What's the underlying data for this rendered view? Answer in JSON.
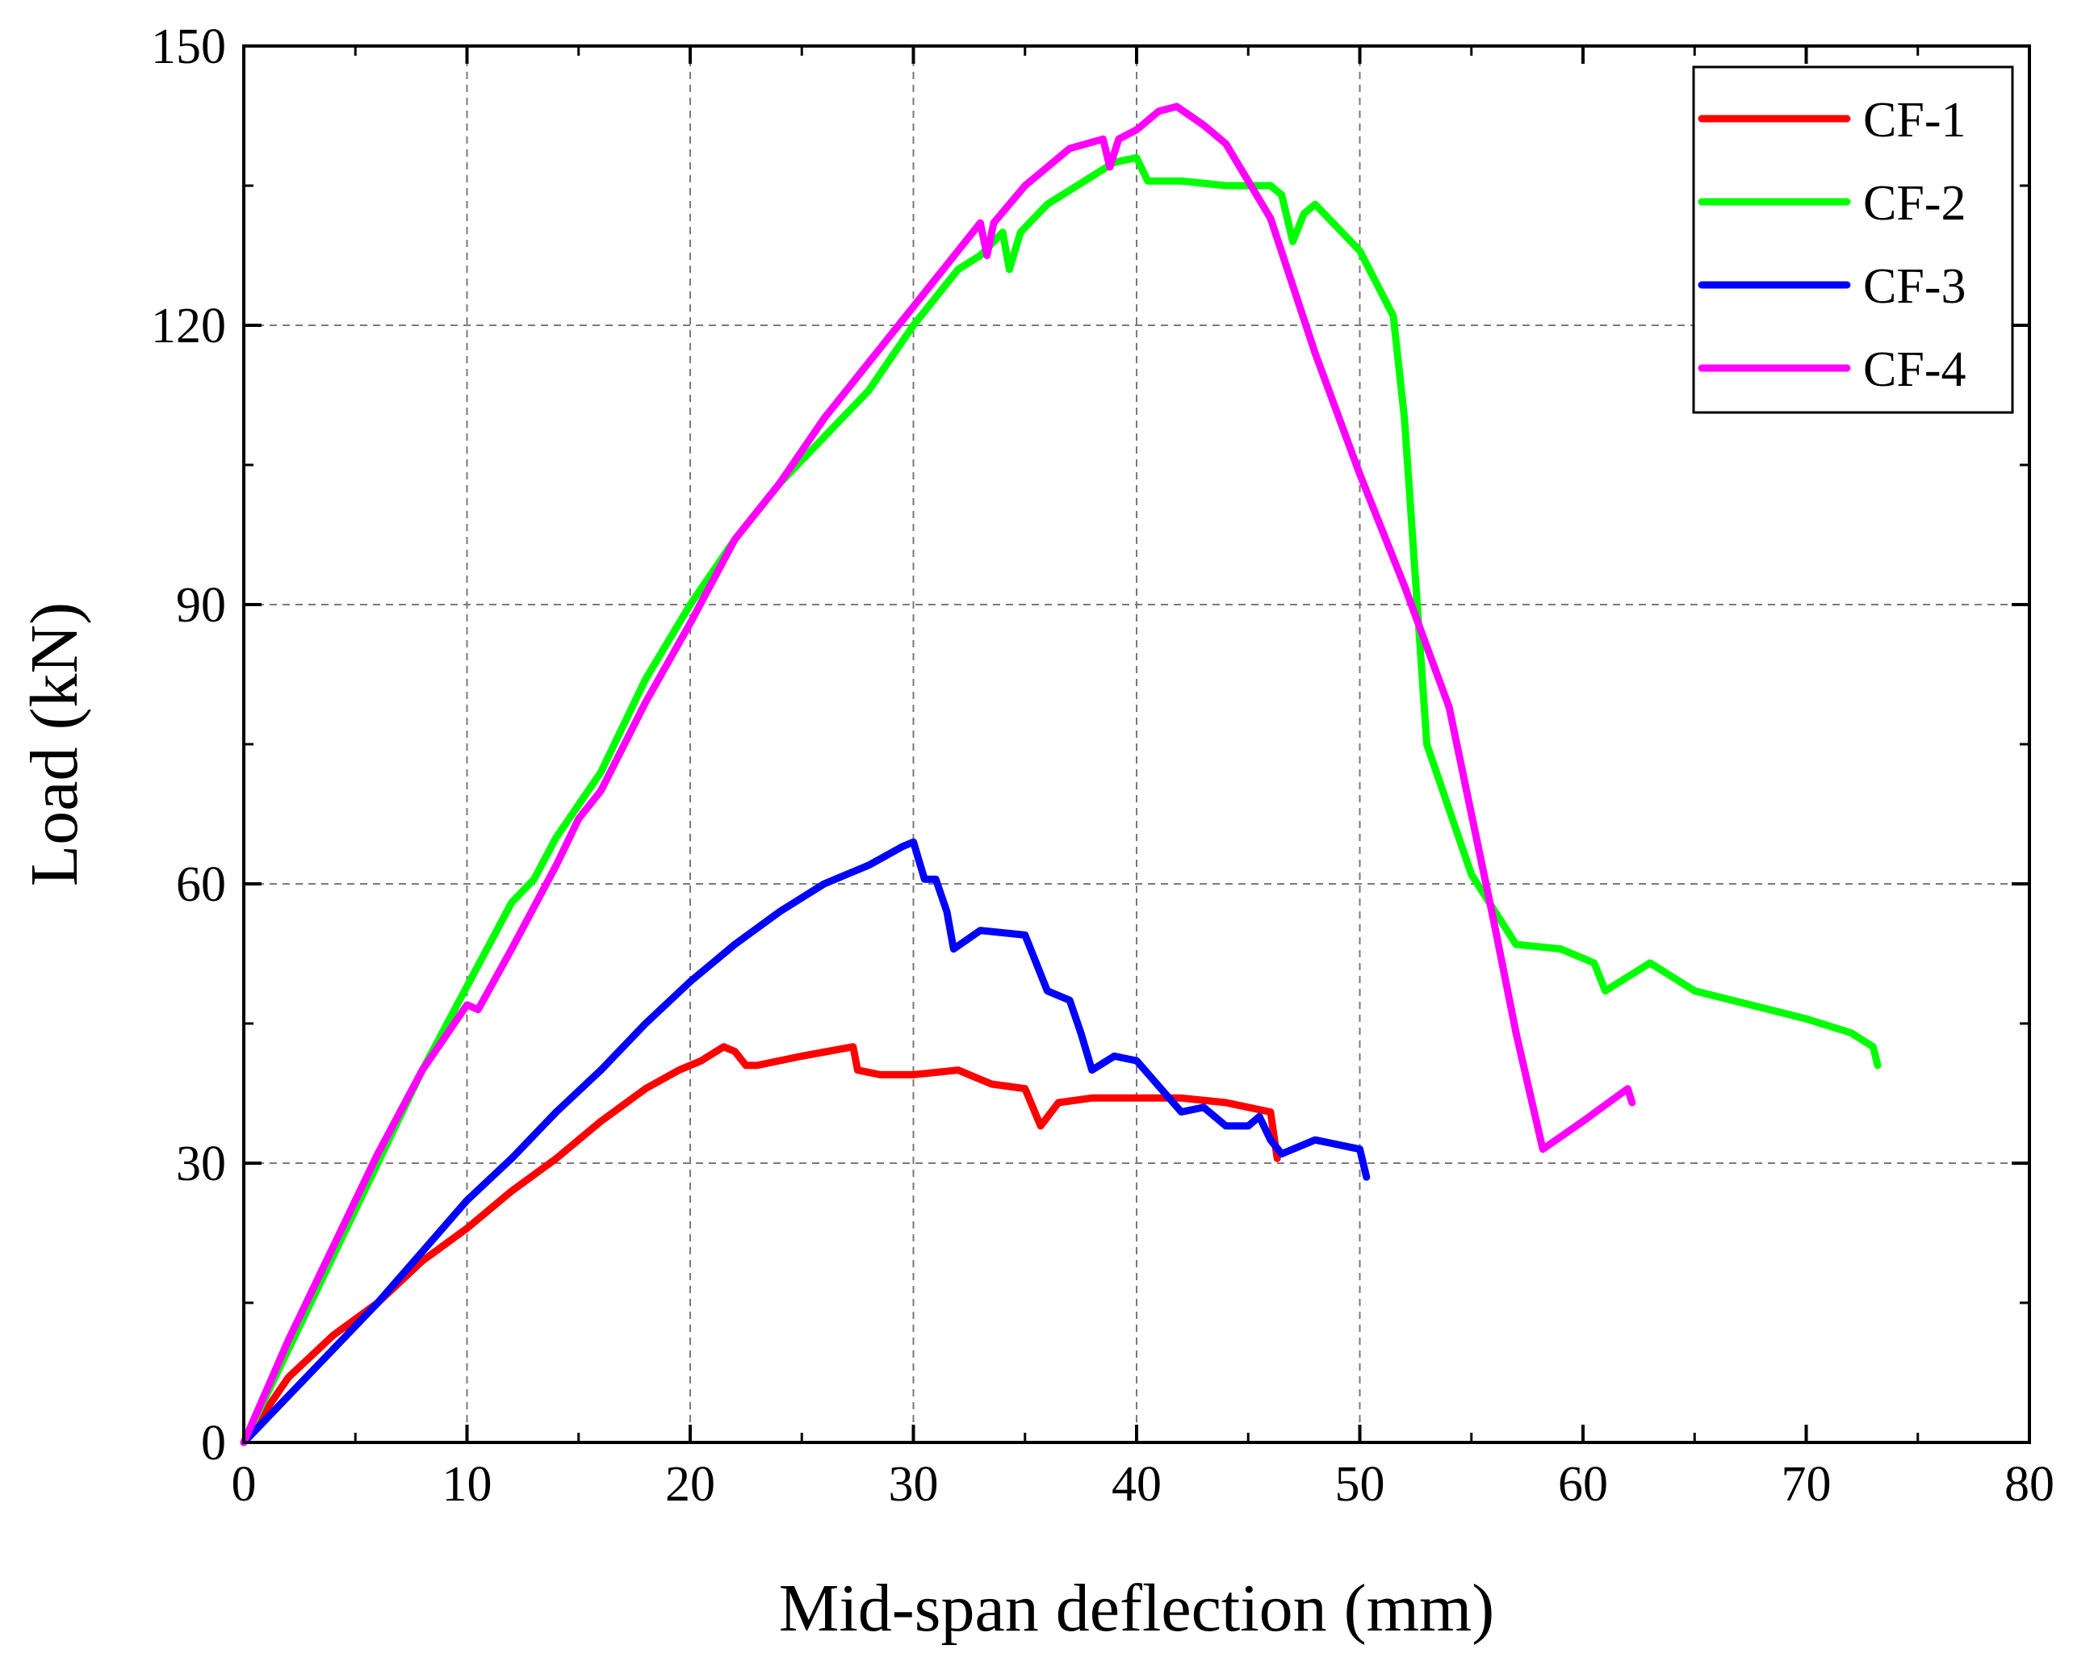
{
  "chart_data": {
    "type": "line",
    "title": "",
    "xlabel": "Mid-span deflection (mm)",
    "ylabel": "Load (kN)",
    "xlim": [
      0,
      80
    ],
    "ylim": [
      0,
      150
    ],
    "xticks": [
      0,
      10,
      20,
      30,
      40,
      50,
      60,
      70,
      80
    ],
    "yticks": [
      0,
      30,
      60,
      90,
      120,
      150
    ],
    "grid_x": [
      10,
      20,
      30,
      40,
      50
    ],
    "grid_y": [
      30,
      60,
      90,
      120
    ],
    "legend_position": "top-right",
    "series": [
      {
        "name": "CF-1",
        "color": "#ff0000",
        "points": [
          [
            0,
            0
          ],
          [
            2,
            7
          ],
          [
            4,
            11.5
          ],
          [
            6,
            15
          ],
          [
            8,
            19.5
          ],
          [
            10,
            23
          ],
          [
            12,
            27
          ],
          [
            14,
            30.5
          ],
          [
            16,
            34.5
          ],
          [
            18,
            38
          ],
          [
            19.5,
            40
          ],
          [
            20.5,
            41
          ],
          [
            21.5,
            42.5
          ],
          [
            22,
            42
          ],
          [
            22.5,
            40.5
          ],
          [
            23,
            40.5
          ],
          [
            25,
            41.5
          ],
          [
            27.3,
            42.5
          ],
          [
            27.5,
            40
          ],
          [
            28.5,
            39.5
          ],
          [
            30,
            39.5
          ],
          [
            32,
            40
          ],
          [
            33.5,
            38.5
          ],
          [
            35,
            38
          ],
          [
            35.7,
            34
          ],
          [
            36.5,
            36.5
          ],
          [
            38,
            37
          ],
          [
            40,
            37
          ],
          [
            42,
            37
          ],
          [
            44,
            36.5
          ],
          [
            46,
            35.5
          ],
          [
            46.3,
            30.5
          ]
        ]
      },
      {
        "name": "CF-2",
        "color": "#00ff00",
        "points": [
          [
            0,
            0
          ],
          [
            2,
            10
          ],
          [
            4,
            20
          ],
          [
            6,
            30
          ],
          [
            8,
            40
          ],
          [
            10,
            49
          ],
          [
            11,
            53.5
          ],
          [
            12,
            58
          ],
          [
            13,
            60.5
          ],
          [
            14,
            65
          ],
          [
            16,
            72
          ],
          [
            18,
            82
          ],
          [
            20,
            90
          ],
          [
            22,
            97
          ],
          [
            24,
            103
          ],
          [
            26,
            108
          ],
          [
            28,
            113
          ],
          [
            30,
            120
          ],
          [
            32,
            126
          ],
          [
            33,
            127.5
          ],
          [
            34,
            130
          ],
          [
            34.3,
            126
          ],
          [
            34.8,
            130
          ],
          [
            36,
            133
          ],
          [
            38,
            136
          ],
          [
            39,
            137.5
          ],
          [
            40,
            138
          ],
          [
            40.5,
            135.5
          ],
          [
            42,
            135.5
          ],
          [
            44,
            135
          ],
          [
            46,
            135
          ],
          [
            46.5,
            134
          ],
          [
            47,
            129
          ],
          [
            47.5,
            132
          ],
          [
            48,
            133
          ],
          [
            50,
            128
          ],
          [
            51.5,
            121
          ],
          [
            52,
            110
          ],
          [
            53,
            75
          ],
          [
            55,
            61
          ],
          [
            57,
            53.5
          ],
          [
            59,
            53
          ],
          [
            60.5,
            51.5
          ],
          [
            61,
            48.5
          ],
          [
            63,
            51.5
          ],
          [
            65,
            48.5
          ],
          [
            70,
            45.5
          ],
          [
            72,
            44
          ],
          [
            73,
            42.5
          ],
          [
            73.2,
            40.5
          ]
        ]
      },
      {
        "name": "CF-3",
        "color": "#0000ff",
        "points": [
          [
            0,
            0
          ],
          [
            2,
            5
          ],
          [
            4,
            10
          ],
          [
            6,
            15
          ],
          [
            8,
            20.5
          ],
          [
            10,
            26
          ],
          [
            12,
            30.5
          ],
          [
            14,
            35.5
          ],
          [
            16,
            40
          ],
          [
            18,
            45
          ],
          [
            20,
            49.5
          ],
          [
            22,
            53.5
          ],
          [
            24,
            57
          ],
          [
            26,
            60
          ],
          [
            28,
            62
          ],
          [
            29.5,
            64
          ],
          [
            30,
            64.5
          ],
          [
            30.5,
            60.5
          ],
          [
            31,
            60.5
          ],
          [
            31.5,
            57
          ],
          [
            31.8,
            53
          ],
          [
            33,
            55
          ],
          [
            35,
            54.5
          ],
          [
            36,
            48.5
          ],
          [
            37,
            47.5
          ],
          [
            37.5,
            44
          ],
          [
            38,
            40
          ],
          [
            39,
            41.5
          ],
          [
            40,
            41
          ],
          [
            42,
            35.5
          ],
          [
            43,
            36
          ],
          [
            44,
            34
          ],
          [
            45,
            34
          ],
          [
            45.5,
            35
          ],
          [
            46,
            32.5
          ],
          [
            46.5,
            31
          ],
          [
            48,
            32.5
          ],
          [
            50,
            31.5
          ],
          [
            50.3,
            28.5
          ]
        ]
      },
      {
        "name": "CF-4",
        "color": "#ff00ff",
        "points": [
          [
            0,
            0
          ],
          [
            2,
            11
          ],
          [
            4,
            21
          ],
          [
            6,
            31
          ],
          [
            8,
            40
          ],
          [
            10,
            47
          ],
          [
            10.5,
            46.5
          ],
          [
            12,
            53
          ],
          [
            14,
            62
          ],
          [
            15,
            67
          ],
          [
            16,
            70
          ],
          [
            18,
            79.5
          ],
          [
            20,
            88
          ],
          [
            22,
            97
          ],
          [
            24,
            103
          ],
          [
            26,
            110
          ],
          [
            28,
            116
          ],
          [
            30,
            122
          ],
          [
            32,
            128
          ],
          [
            33,
            131
          ],
          [
            33.3,
            127.5
          ],
          [
            33.6,
            131
          ],
          [
            35,
            135
          ],
          [
            37,
            139
          ],
          [
            38.5,
            140
          ],
          [
            38.8,
            137
          ],
          [
            39.2,
            140
          ],
          [
            40,
            141
          ],
          [
            41,
            143
          ],
          [
            41.8,
            143.5
          ],
          [
            43,
            141.5
          ],
          [
            44,
            139.5
          ],
          [
            46,
            131.5
          ],
          [
            48,
            117
          ],
          [
            50,
            104
          ],
          [
            52,
            92
          ],
          [
            54,
            79
          ],
          [
            56,
            56
          ],
          [
            57,
            44
          ],
          [
            58.2,
            31.5
          ],
          [
            60,
            34.5
          ],
          [
            62,
            38
          ],
          [
            62.2,
            36.5
          ]
        ]
      }
    ]
  }
}
